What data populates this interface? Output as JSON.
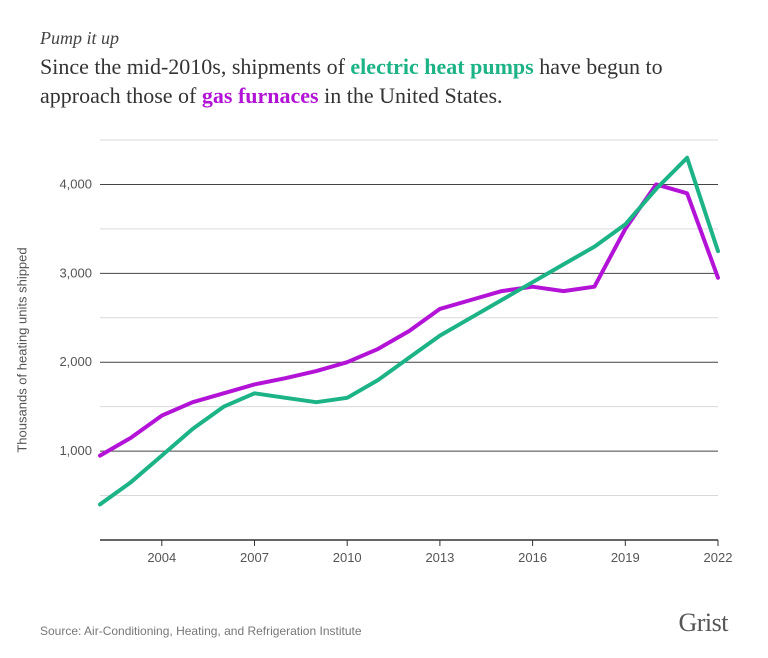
{
  "kicker": "Pump it up",
  "headline": {
    "p1": "Since the mid-2010s, shipments of ",
    "hp": "electric heat pumps",
    "p2": " have begun to approach those of ",
    "gf": "gas furnaces",
    "p3": " in the United States."
  },
  "colors": {
    "heat_pumps": "#1cb386",
    "gas_furnaces": "#b213d6",
    "grid": "#444444",
    "grid_light": "#d9d9d9",
    "axis": "#333333",
    "bg": "#ffffff"
  },
  "chart": {
    "type": "line",
    "y_label": "Thousands of heating units shipped",
    "xlim": [
      2002,
      2022
    ],
    "ylim": [
      0,
      4500
    ],
    "y_ticks": [
      1000,
      2000,
      3000,
      4000
    ],
    "y_tick_labels": [
      "1,000",
      "2,000",
      "3,000",
      "4,000"
    ],
    "x_ticks": [
      2004,
      2007,
      2010,
      2013,
      2016,
      2019,
      2022
    ],
    "x_tick_labels": [
      "2004",
      "2007",
      "2010",
      "2013",
      "2016",
      "2019",
      "2022"
    ],
    "line_width": 4,
    "series": {
      "gas_furnaces": {
        "color_key": "gas_furnaces",
        "x": [
          2002,
          2003,
          2004,
          2005,
          2006,
          2007,
          2008,
          2009,
          2010,
          2011,
          2012,
          2013,
          2014,
          2015,
          2016,
          2017,
          2018,
          2019,
          2020,
          2021,
          2022
        ],
        "y": [
          950,
          1150,
          1400,
          1550,
          1650,
          1750,
          1820,
          1900,
          2000,
          2150,
          2350,
          2600,
          2700,
          2800,
          2850,
          2800,
          2850,
          3500,
          4000,
          3900,
          2950
        ]
      },
      "heat_pumps": {
        "color_key": "heat_pumps",
        "x": [
          2002,
          2003,
          2004,
          2005,
          2006,
          2007,
          2008,
          2009,
          2010,
          2011,
          2012,
          2013,
          2014,
          2015,
          2016,
          2017,
          2018,
          2019,
          2020,
          2021,
          2022
        ],
        "y": [
          400,
          650,
          950,
          1250,
          1500,
          1650,
          1600,
          1550,
          1600,
          1800,
          2050,
          2300,
          2500,
          2700,
          2900,
          3100,
          3300,
          3550,
          3950,
          4300,
          3250
        ]
      }
    }
  },
  "source": "Source: Air-Conditioning, Heating, and Refrigeration Institute",
  "brand": "Grist"
}
